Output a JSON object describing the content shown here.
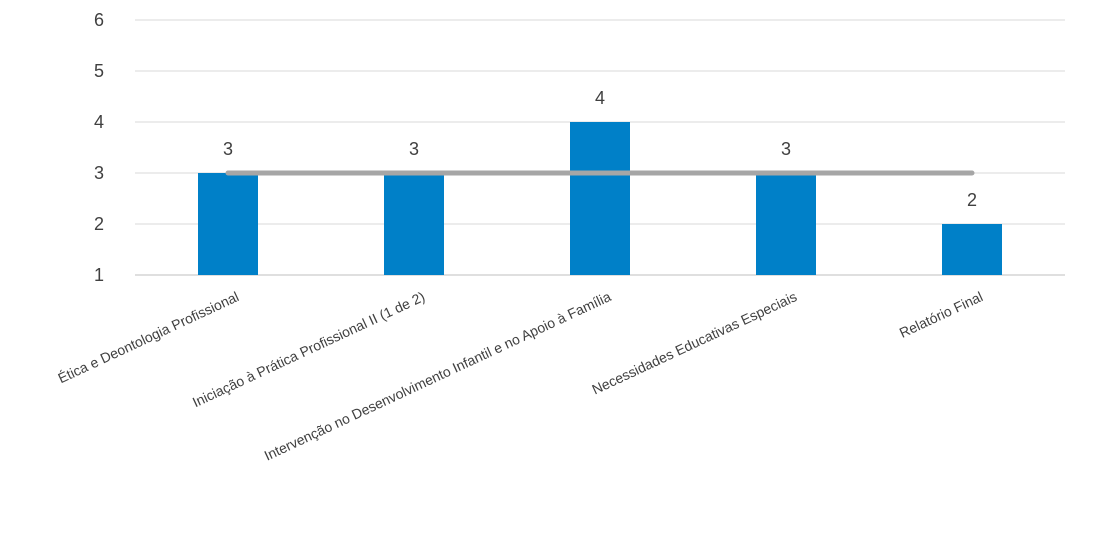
{
  "chart_data": {
    "type": "bar",
    "title": "",
    "xlabel": "",
    "ylabel": "",
    "ylim": [
      1,
      6
    ],
    "yticks": [
      1,
      2,
      3,
      4,
      5,
      6
    ],
    "grid": true,
    "legend": "none",
    "categories": [
      "Ética e Deontologia Profissional",
      "Iniciação à Prática Profissional II (1 de 2)",
      "Intervenção no Desenvolvimento Infantil e no Apoio à Família",
      "Necessidades Educativas Especiais",
      "Relatório Final"
    ],
    "series": [
      {
        "type": "bar",
        "values": [
          3,
          3,
          4,
          3,
          2
        ],
        "color": "#0080C8",
        "data_labels": [
          "3",
          "3",
          "4",
          "3",
          "2"
        ]
      },
      {
        "type": "line",
        "values": [
          3,
          3,
          3,
          3,
          3
        ],
        "color": "#A6A6A6"
      }
    ]
  }
}
